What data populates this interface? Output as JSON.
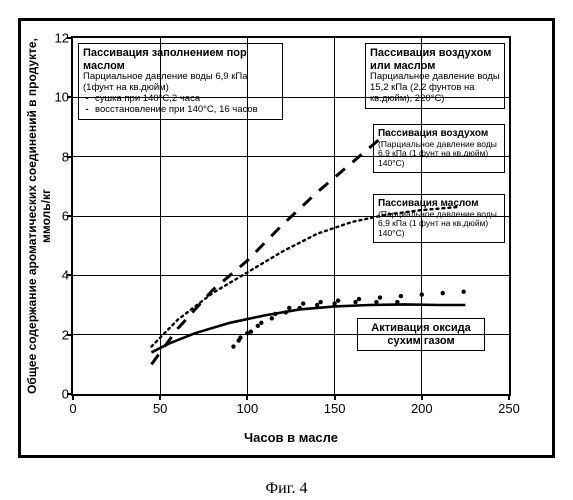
{
  "figure_caption": "Фиг. 4",
  "axes": {
    "xlabel": "Часов в масле",
    "ylabel": "Общее содержание ароматических соединений в продукте, ммоль/кг",
    "xlim": [
      0,
      250
    ],
    "ylim": [
      0,
      12
    ],
    "xticks": [
      0,
      50,
      100,
      150,
      200,
      250
    ],
    "yticks": [
      0,
      2,
      4,
      6,
      8,
      10,
      12
    ],
    "grid_color": "#000000",
    "background_color": "#ffffff",
    "label_fontsize": 13,
    "tick_fontsize": 13
  },
  "series": [
    {
      "name": "air_or_oil_passivation",
      "type": "line",
      "style": "dashed",
      "dash": "12 10",
      "color": "#000000",
      "width": 3,
      "points": [
        [
          45,
          1.0
        ],
        [
          60,
          2.2
        ],
        [
          80,
          3.5
        ],
        [
          100,
          4.5
        ],
        [
          120,
          5.7
        ],
        [
          140,
          6.8
        ],
        [
          160,
          7.8
        ],
        [
          180,
          8.8
        ]
      ]
    },
    {
      "name": "air_passivation",
      "type": "line",
      "style": "dotted",
      "dash": "2 4",
      "color": "#000000",
      "width": 2.4,
      "points": [
        [
          45,
          1.6
        ],
        [
          60,
          2.5
        ],
        [
          80,
          3.4
        ],
        [
          100,
          4.1
        ],
        [
          120,
          4.8
        ],
        [
          140,
          5.4
        ],
        [
          160,
          5.8
        ],
        [
          180,
          6.05
        ],
        [
          200,
          6.2
        ],
        [
          220,
          6.3
        ]
      ]
    },
    {
      "name": "oil_passivation",
      "type": "line",
      "style": "solid",
      "dash": "",
      "color": "#000000",
      "width": 2.6,
      "points": [
        [
          45,
          1.4
        ],
        [
          55,
          1.7
        ],
        [
          70,
          2.05
        ],
        [
          90,
          2.4
        ],
        [
          110,
          2.65
        ],
        [
          130,
          2.85
        ],
        [
          150,
          2.95
        ],
        [
          170,
          3.0
        ],
        [
          190,
          3.02
        ],
        [
          210,
          3.0
        ],
        [
          225,
          3.0
        ]
      ]
    },
    {
      "name": "pore_fill_dryA",
      "type": "scatter",
      "marker": "dot",
      "color": "#000000",
      "size": 2.2,
      "points": [
        [
          92,
          1.6
        ],
        [
          96,
          1.9
        ],
        [
          102,
          2.1
        ],
        [
          108,
          2.4
        ],
        [
          116,
          2.7
        ],
        [
          124,
          2.9
        ],
        [
          132,
          3.05
        ],
        [
          142,
          3.1
        ],
        [
          152,
          3.15
        ],
        [
          164,
          3.2
        ],
        [
          176,
          3.25
        ],
        [
          188,
          3.3
        ],
        [
          200,
          3.35
        ],
        [
          212,
          3.4
        ],
        [
          224,
          3.45
        ]
      ]
    },
    {
      "name": "pore_fill_dryB",
      "type": "scatter",
      "marker": "dot",
      "color": "#000000",
      "size": 2.2,
      "points": [
        [
          95,
          1.8
        ],
        [
          100,
          2.05
        ],
        [
          106,
          2.3
        ],
        [
          114,
          2.55
        ],
        [
          122,
          2.75
        ],
        [
          130,
          2.9
        ],
        [
          140,
          3.0
        ],
        [
          150,
          3.05
        ],
        [
          162,
          3.1
        ],
        [
          174,
          3.1
        ],
        [
          186,
          3.1
        ]
      ]
    }
  ],
  "legends": {
    "pore_fill": {
      "lead": "Пассивация заполнением пор маслом",
      "sub": "Парциальное давление воды 6,9 кПа",
      "note": "(1фунт на кв.дюйм)",
      "item1": "сушка при 140°С,2 часа",
      "item2": "восстановление при 140°С, 16 часов"
    },
    "air_or_oil": {
      "lead": "Пассивация воздухом или маслом",
      "sub": "Парциальное давление воды 15,2 кПа (2,2 фунтов на кв.дюйм), 220°С)"
    },
    "air": {
      "lead": "Пассивация воздухом",
      "sub": "(Парциальное давление воды 6,9 кПа (1 фунт на кв.дюйм) 140°С)"
    },
    "oil": {
      "lead": "Пассивация маслом",
      "sub": "(Парциальное давление воды 6,9 кПа (1 фунт на кв.дюйм) 140°С)"
    },
    "activation": {
      "lead": "Активация оксида сухим газом"
    }
  }
}
